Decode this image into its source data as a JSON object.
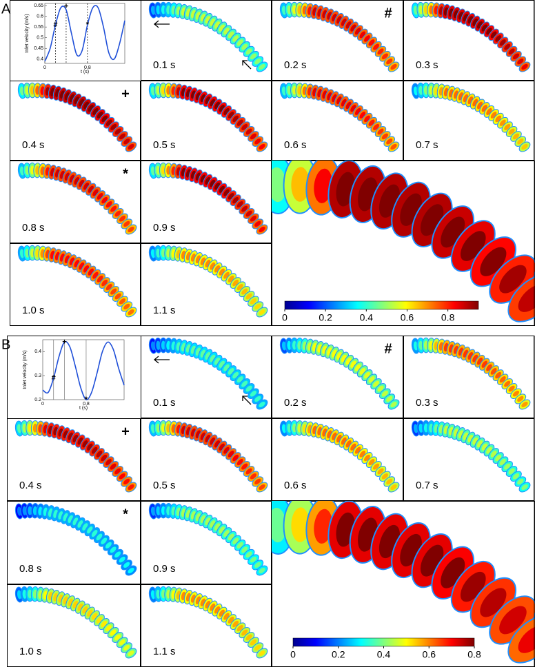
{
  "panels": [
    {
      "label": "A",
      "inlet_plot": {
        "type": "line",
        "ylabel": "Inlet velocity (m/s)",
        "xlabel": "t (s)",
        "x": [
          0,
          0.1,
          0.2,
          0.3,
          0.4,
          0.5,
          0.6,
          0.7,
          0.8,
          0.9,
          1.0,
          1.1,
          1.2,
          1.3,
          1.4,
          1.5
        ],
        "values": [
          0.39,
          0.45,
          0.56,
          0.64,
          0.63,
          0.52,
          0.42,
          0.44,
          0.56,
          0.64,
          0.64,
          0.55,
          0.43,
          0.4,
          0.47,
          0.58
        ],
        "xlim": [
          0,
          1.5
        ],
        "ylim": [
          0.38,
          0.66
        ],
        "yticks": [
          0.4,
          0.45,
          0.5,
          0.55,
          0.6,
          0.65
        ],
        "xticks": [
          0,
          0.8
        ],
        "markers": [
          {
            "label": "#",
            "x": 0.2,
            "y": 0.56
          },
          {
            "label": "+",
            "x": 0.4,
            "y": 0.645
          },
          {
            "label": "*",
            "x": 0.8,
            "y": 0.56
          }
        ]
      },
      "tiles": [
        {
          "time": "0.1 s"
        },
        {
          "time": "0.2 s",
          "marker": "#"
        },
        {
          "time": "0.3 s"
        },
        {
          "time": "0.4 s",
          "marker": "+"
        },
        {
          "time": "0.5 s"
        },
        {
          "time": "0.6 s"
        },
        {
          "time": "0.7 s"
        },
        {
          "time": "0.8 s",
          "marker": "*"
        },
        {
          "time": "0.9 s"
        },
        {
          "time": "1.0 s"
        },
        {
          "time": "1.1 s"
        }
      ],
      "colorbar": {
        "lim": [
          0,
          0.95
        ],
        "ticks": [
          0,
          0.2,
          0.4,
          0.6,
          0.8
        ]
      }
    },
    {
      "label": "B",
      "inlet_plot": {
        "type": "line",
        "ylabel": "Inlet velocity (m/s)",
        "xlabel": "t (s)",
        "x": [
          0,
          0.1,
          0.2,
          0.3,
          0.4,
          0.5,
          0.6,
          0.7,
          0.8,
          0.9,
          1.0,
          1.1,
          1.2,
          1.3,
          1.4,
          1.5
        ],
        "values": [
          0.24,
          0.23,
          0.29,
          0.38,
          0.44,
          0.42,
          0.34,
          0.25,
          0.2,
          0.23,
          0.31,
          0.4,
          0.44,
          0.41,
          0.33,
          0.26
        ],
        "xlim": [
          0,
          1.5
        ],
        "ylim": [
          0.2,
          0.45
        ],
        "yticks": [
          0.2,
          0.3,
          0.4
        ],
        "xticks": [
          0,
          0.8
        ],
        "markers": [
          {
            "label": "#",
            "x": 0.2,
            "y": 0.29
          },
          {
            "label": "+",
            "x": 0.4,
            "y": 0.44
          },
          {
            "label": "*",
            "x": 0.8,
            "y": 0.2
          }
        ]
      },
      "tiles": [
        {
          "time": "0.1 s"
        },
        {
          "time": "0.2 s",
          "marker": "#"
        },
        {
          "time": "0.3 s"
        },
        {
          "time": "0.4 s",
          "marker": "+"
        },
        {
          "time": "0.5 s"
        },
        {
          "time": "0.6 s"
        },
        {
          "time": "0.7 s"
        },
        {
          "time": "0.8 s",
          "marker": "*"
        },
        {
          "time": "0.9 s"
        },
        {
          "time": "1.0 s"
        },
        {
          "time": "1.1 s"
        }
      ],
      "colorbar": {
        "lim": [
          0,
          0.8
        ],
        "ticks": [
          0,
          0.2,
          0.4,
          0.6,
          0.8
        ]
      }
    }
  ]
}
